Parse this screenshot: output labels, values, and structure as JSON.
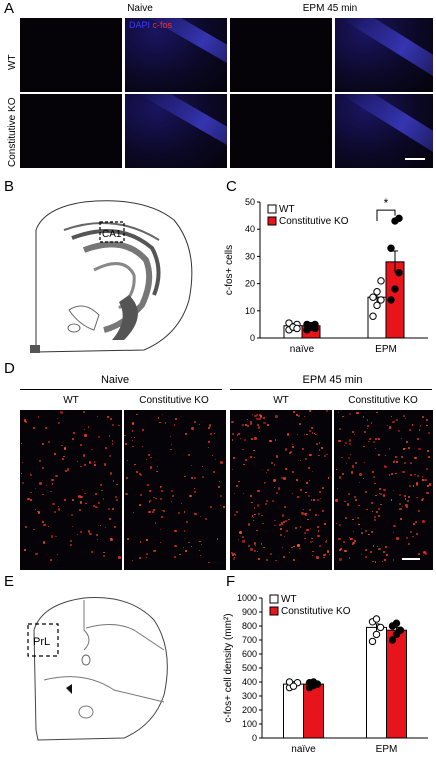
{
  "panelA": {
    "label": "A",
    "col_naive": "Naive",
    "col_epm": "EPM 45 min",
    "stain_dapi": "DAPI",
    "stain_cfos": "c-fos",
    "row_wt": "WT",
    "row_ko": "Constitutive KO"
  },
  "panelB": {
    "label": "B",
    "region": "CA1"
  },
  "panelC": {
    "label": "C"
  },
  "panelD": {
    "label": "D",
    "group_naive": "Naive",
    "group_epm": "EPM 45 min",
    "col_wt_1": "WT",
    "col_ko_1": "Constitutive KO",
    "col_wt_2": "WT",
    "col_ko_2": "Constitutive KO"
  },
  "panelE": {
    "label": "E",
    "region": "PrL"
  },
  "panelF": {
    "label": "F"
  },
  "chart_data": [
    {
      "type": "bar",
      "panel": "C",
      "categories": [
        "naïve",
        "EPM"
      ],
      "ylabel": "c-fos+ cells",
      "ylim": [
        0,
        50
      ],
      "yticks": [
        0,
        10,
        20,
        30,
        40,
        50
      ],
      "legend": [
        "WT",
        "Constitutive KO"
      ],
      "series": [
        {
          "name": "WT",
          "color": "#ffffff",
          "values": [
            4.5,
            15
          ],
          "errors": [
            0.8,
            2
          ],
          "points": [
            [
              3,
              4,
              5,
              5.5,
              4,
              3.5
            ],
            [
              8,
              12,
              14,
              15,
              17,
              21
            ]
          ]
        },
        {
          "name": "Constitutive KO",
          "color": "#e8141b",
          "values": [
            4.5,
            28
          ],
          "errors": [
            0.8,
            4
          ],
          "points": [
            [
              3,
              4,
              5,
              5,
              4.5,
              3.5
            ],
            [
              14,
              18,
              24,
              33,
              43,
              44
            ]
          ]
        }
      ],
      "significance": "*",
      "significance_pair": [
        1,
        "WT vs Constitutive KO"
      ]
    },
    {
      "type": "bar",
      "panel": "F",
      "categories": [
        "naïve",
        "EPM"
      ],
      "ylabel": "c-fos+ cell density (mm²)",
      "ylim": [
        0,
        1000
      ],
      "yticks": [
        0,
        100,
        200,
        300,
        400,
        500,
        600,
        700,
        800,
        900,
        1000
      ],
      "legend": [
        "WT",
        "Constitutive KO"
      ],
      "series": [
        {
          "name": "WT",
          "color": "#ffffff",
          "values": [
            385,
            790
          ],
          "errors": [
            10,
            25
          ],
          "points": [
            [
              360,
              380,
              395,
              400,
              370
            ],
            [
              690,
              740,
              790,
              830,
              850
            ]
          ]
        },
        {
          "name": "Constitutive KO",
          "color": "#e8141b",
          "values": [
            385,
            770
          ],
          "errors": [
            10,
            20
          ],
          "points": [
            [
              360,
              375,
              385,
              395,
              400
            ],
            [
              700,
              740,
              770,
              800,
              820
            ]
          ]
        }
      ]
    }
  ]
}
